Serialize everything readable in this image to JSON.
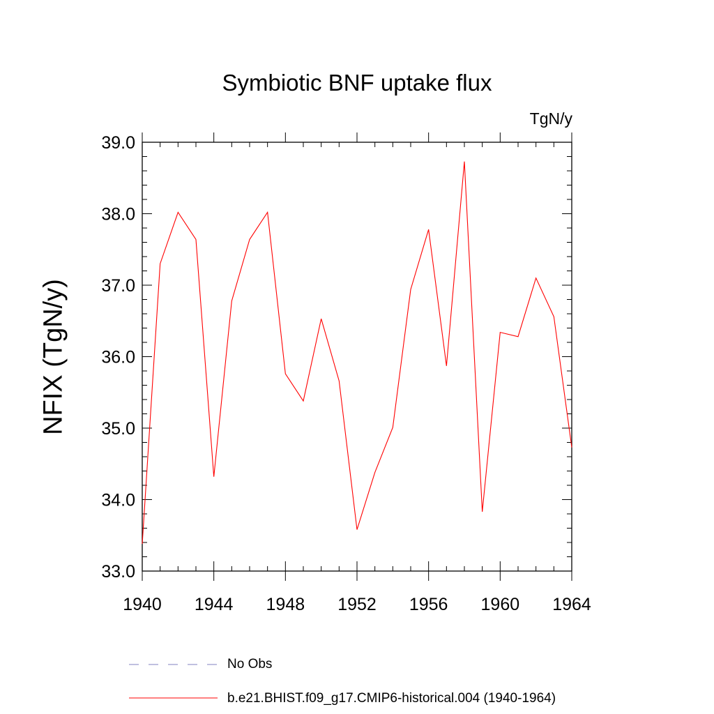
{
  "chart_data": {
    "type": "line",
    "title": "Symbiotic BNF uptake flux",
    "units": "TgN/y",
    "ylabel": "NFIX  (TgN/y)",
    "xlabel": "",
    "xlim": [
      1940,
      1964
    ],
    "ylim": [
      33.0,
      39.0
    ],
    "xticks": [
      "1940",
      "1944",
      "1948",
      "1952",
      "1956",
      "1960",
      "1964"
    ],
    "yticks": [
      "33.0",
      "34.0",
      "35.0",
      "36.0",
      "37.0",
      "38.0",
      "39.0"
    ],
    "grid": false,
    "x": [
      1940,
      1941,
      1942,
      1943,
      1944,
      1945,
      1946,
      1947,
      1948,
      1949,
      1950,
      1951,
      1952,
      1953,
      1954,
      1955,
      1956,
      1957,
      1958,
      1959,
      1960,
      1961,
      1962,
      1963,
      1964
    ],
    "series": [
      {
        "name": "b.e21.BHIST.f09_g17.CMIP6-historical.004 (1940-1964)",
        "color": "#ff0000",
        "values": [
          33.38,
          37.3,
          38.02,
          37.64,
          34.32,
          36.78,
          37.64,
          38.02,
          35.76,
          35.38,
          36.53,
          35.66,
          33.58,
          34.38,
          35.01,
          36.94,
          37.78,
          35.87,
          38.73,
          33.83,
          36.34,
          36.28,
          37.1,
          36.56,
          34.73
        ]
      }
    ],
    "legend": {
      "placement": "bottom",
      "items": [
        {
          "label": "No Obs",
          "style": "dashed",
          "color": "#8080c0"
        },
        {
          "label": "b.e21.BHIST.f09_g17.CMIP6-historical.004 (1940-1964)",
          "style": "solid",
          "color": "#ff0000"
        }
      ]
    }
  }
}
